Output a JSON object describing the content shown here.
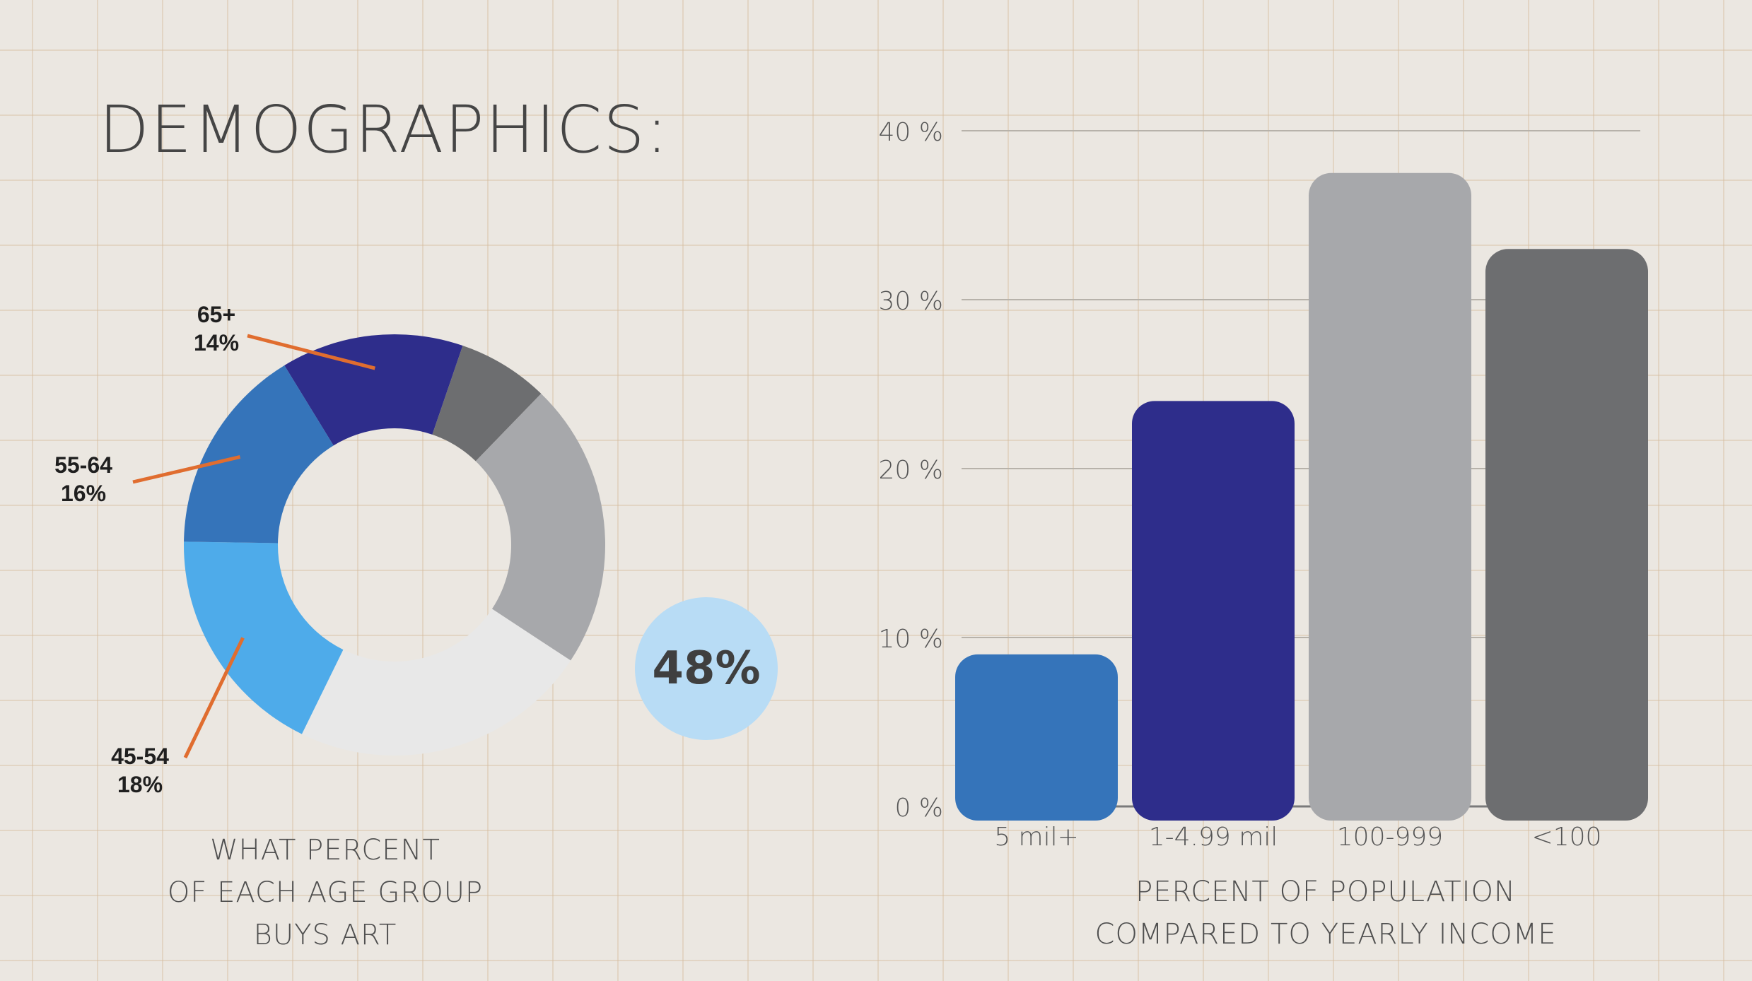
{
  "title": "DEMOGRAPHICS:",
  "highlight": "48%",
  "chart_data": [
    {
      "type": "pie",
      "title": "WHAT PERCENT OF EACH AGE GROUP BUYS ART",
      "caption_lines": [
        "WHAT PERCENT",
        "OF EACH AGE GROUP",
        "BUYS ART"
      ],
      "slices": [
        {
          "label": "65+",
          "value": 14,
          "value_label": "14%",
          "color": "#2e2d8b"
        },
        {
          "label": "",
          "value": 7,
          "value_label": "",
          "color": "#6d6e70"
        },
        {
          "label": "",
          "value": 22,
          "value_label": "",
          "color": "#a7a8ab"
        },
        {
          "label": "",
          "value": 23,
          "value_label": "",
          "color": "#e8e8e8"
        },
        {
          "label": "45-54",
          "value": 18,
          "value_label": "18%",
          "color": "#4eabea"
        },
        {
          "label": "55-64",
          "value": 16,
          "value_label": "16%",
          "color": "#3574ba"
        }
      ]
    },
    {
      "type": "bar",
      "title": "PERCENT OF POPULATION COMPARED TO YEARLY INCOME",
      "caption_lines": [
        "PERCENT OF POPULATION",
        "COMPARED TO YEARLY INCOME"
      ],
      "categories": [
        "5 mil+",
        "1-4.99 mil",
        "100-999",
        "<100"
      ],
      "values": [
        9,
        24,
        37.5,
        33
      ],
      "colors": [
        "#3574ba",
        "#2e2d8b",
        "#a7a8ab",
        "#6d6e70"
      ],
      "ylim": [
        0,
        40
      ],
      "yticks": [
        0,
        10,
        20,
        30,
        40
      ],
      "ytick_labels": [
        "0 %",
        "10 %",
        "20 %",
        "30 %",
        "40 %"
      ],
      "grid": true
    }
  ]
}
